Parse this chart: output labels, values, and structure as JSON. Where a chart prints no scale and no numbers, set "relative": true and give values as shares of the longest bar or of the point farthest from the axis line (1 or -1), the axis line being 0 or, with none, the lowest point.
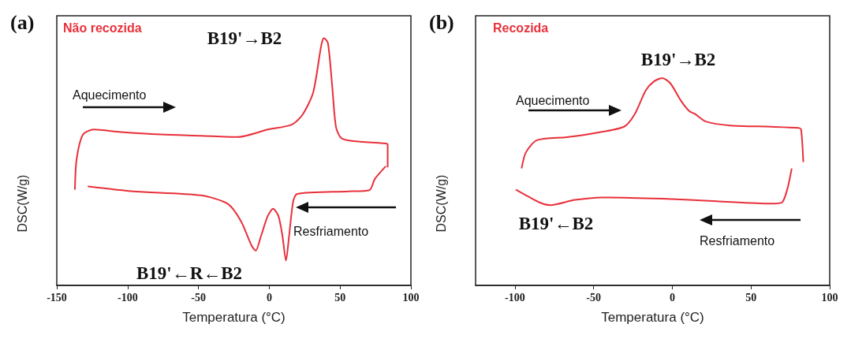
{
  "chart_data": [
    {
      "type": "line",
      "title": "(a)",
      "subtitle": "Não recozida",
      "xlabel": "Temperatura (°C)",
      "ylabel": "DSC(W/g)",
      "relative": true,
      "xlim": [
        -150,
        100
      ],
      "xticks": [
        -150,
        -100,
        -50,
        0,
        50,
        100
      ],
      "tick_labels": "x",
      "grid": false,
      "marker": "none",
      "line_style": "solid",
      "annotations": [
        "B19'→B2",
        "Aquecimento",
        "Resfriamento",
        "B19'←R←B2"
      ],
      "series": [
        {
          "color": "#e8303a",
          "x": [
            -137.2,
            -136,
            -131.5,
            -123.9,
            -105,
            -76.7,
            -48.3,
            -21.9,
            -1.1,
            15.9,
            23.5,
            31.0,
            36.7,
            38.6,
            41.4,
            44.3,
            47.1,
            50.9,
            59.4,
            82.0,
            83.6,
            83.6
          ],
          "values": [
            0.39,
            0.51,
            0.61,
            0.63,
            0.62,
            0.61,
            0.605,
            0.6,
            0.63,
            0.65,
            0.69,
            0.78,
            0.97,
            1.0,
            0.98,
            0.815,
            0.64,
            0.595,
            0.583,
            0.574,
            0.57,
            0.48
          ]
        },
        {
          "color": "#e8303a",
          "x": [
            82.0,
            74.5,
            70.7,
            55.6,
            19.7,
            16.9,
            14.0,
            11.8,
            9.3,
            6.5,
            2.7,
            -1.1,
            -5.8,
            -9.6,
            -12.4,
            -20.0,
            -29.4,
            -48.3,
            -95.6,
            -127.7
          ],
          "values": [
            0.48,
            0.43,
            0.385,
            0.38,
            0.37,
            0.34,
            0.2,
            0.1,
            0.2,
            0.28,
            0.31,
            0.28,
            0.2,
            0.14,
            0.16,
            0.26,
            0.33,
            0.364,
            0.38,
            0.4
          ]
        }
      ]
    },
    {
      "type": "line",
      "title": "(b)",
      "subtitle": "Recozida",
      "xlabel": "Temperatura (°C)",
      "ylabel": "DSC(W/g)",
      "relative": true,
      "xlim": [
        -125,
        100
      ],
      "xticks": [
        -100,
        -50,
        0,
        50,
        100
      ],
      "tick_labels": "x",
      "grid": false,
      "marker": "none",
      "line_style": "solid",
      "annotations": [
        "B19'→B2",
        "Aquecimento",
        "Resfriamento",
        "B19'←B2"
      ],
      "series": [
        {
          "color": "#e8303a",
          "x": [
            -95.7,
            -93.1,
            -86.1,
            -67.1,
            -49.8,
            -30.7,
            -23.8,
            -16.9,
            -11.7,
            -6.5,
            -1.3,
            5.6,
            10.8,
            14.3,
            21.2,
            36.8,
            62.8,
            80.1,
            81.8,
            83.2
          ],
          "values": [
            0.567,
            0.64,
            0.7,
            0.715,
            0.734,
            0.765,
            0.827,
            0.94,
            0.983,
            1.0,
            0.975,
            0.889,
            0.84,
            0.827,
            0.79,
            0.771,
            0.765,
            0.759,
            0.752,
            0.598
          ]
        },
        {
          "color": "#e8303a",
          "x": [
            75.8,
            73.2,
            69.7,
            62.8,
            28.1,
            -6.5,
            -41.1,
            -61.9,
            -77.5,
            -84.4,
            -99.1
          ],
          "values": [
            0.561,
            0.468,
            0.4,
            0.394,
            0.406,
            0.418,
            0.424,
            0.412,
            0.387,
            0.4,
            0.46
          ]
        }
      ]
    }
  ]
}
